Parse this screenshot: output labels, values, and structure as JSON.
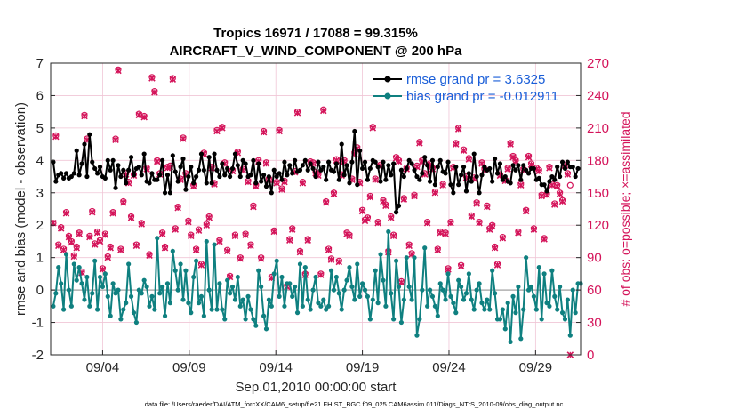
{
  "chart_data": {
    "type": "line",
    "title_line1": "Tropics 16971 / 17088 = 99.315%",
    "title_line2": "AIRCRAFT_V_WIND_COMPONENT @ 200 hPa",
    "xlabel": "Sep.01,2010 00:00:00 start",
    "ylabel_left": "rmse and bias (model - observation)",
    "ylabel_right": "# of obs: o=possible; ×=assimilated",
    "ylim_left": [
      -2,
      7
    ],
    "ylim_right": [
      0,
      270
    ],
    "xlim": [
      0,
      30.6
    ],
    "yticks_left": [
      -2,
      -1,
      0,
      1,
      2,
      3,
      4,
      5,
      6,
      7
    ],
    "yticks_right": [
      0,
      30,
      60,
      90,
      120,
      150,
      180,
      210,
      240,
      270
    ],
    "xticks": [
      {
        "x": 3,
        "label": "09/04"
      },
      {
        "x": 8,
        "label": "09/09"
      },
      {
        "x": 13,
        "label": "09/14"
      },
      {
        "x": 18,
        "label": "09/19"
      },
      {
        "x": 23,
        "label": "09/24"
      },
      {
        "x": 28,
        "label": "09/29"
      }
    ],
    "footnote": "data file: /Users/raeder/DAI/ATM_forcXX/CAM6_setup/f.e21.FHIST_BGC.f09_025.CAM6assim.011/Diags_NTrS_2010-09/obs_diag_output.nc",
    "colors": {
      "rmse": "#000000",
      "bias": "#0f8080",
      "obs": "#d4145a",
      "legend_text": "#1a5ed8",
      "grid": "#f0c6d6",
      "zero_line": "#b0b0b0"
    },
    "series": [
      {
        "name": "rmse grand pr = 3.6325",
        "key": "rmse",
        "values": [
          3.95,
          3.35,
          3.55,
          3.6,
          3.45,
          3.6,
          3.45,
          3.5,
          3.6,
          4.3,
          3.55,
          3.9,
          4.5,
          3.5,
          4.8,
          3.95,
          3.75,
          3.6,
          3.8,
          3.5,
          3.45,
          4.0,
          3.7,
          4.0,
          3.15,
          3.85,
          3.5,
          3.7,
          3.3,
          3.7,
          4.1,
          3.55,
          3.75,
          3.8,
          3.55,
          4.2,
          3.35,
          3.3,
          3.6,
          3.4,
          3.4,
          3.55,
          4.0,
          3.0,
          3.55,
          3.0,
          4.15,
          3.65,
          3.35,
          3.8,
          4.05,
          3.1,
          3.5,
          3.8,
          3.3,
          3.5,
          3.7,
          4.2,
          3.7,
          3.3,
          4.1,
          3.3,
          4.2,
          3.7,
          3.5,
          3.9,
          3.55,
          3.75,
          3.5,
          3.75,
          4.2,
          3.85,
          3.5,
          4.0,
          3.9,
          3.5,
          3.55,
          4.0,
          3.3,
          3.9,
          3.35,
          3.55,
          3.2,
          3.5,
          3.0,
          3.7,
          3.5,
          3.6,
          3.4,
          3.95,
          3.55,
          3.85,
          3.6,
          4.0,
          3.65,
          3.7,
          3.85,
          4.0,
          3.7,
          3.9,
          3.75,
          3.5,
          3.95,
          3.7,
          3.8,
          3.4,
          3.95,
          3.7,
          3.65,
          3.9,
          3.4,
          4.5,
          3.55,
          3.85,
          3.3,
          3.95,
          4.9,
          3.25,
          4.3,
          3.75,
          3.95,
          3.4,
          3.75,
          4.0,
          3.95,
          3.8,
          3.35,
          3.95,
          3.4,
          3.85,
          3.55,
          3.9,
          2.4,
          2.6,
          3.7,
          3.5,
          3.75,
          4.0,
          3.9,
          3.7,
          3.5,
          3.4,
          3.6,
          4.1,
          3.85,
          3.35,
          4.0,
          3.25,
          3.8,
          4.0,
          3.65,
          3.6,
          3.95,
          3.25,
          3.0,
          3.8,
          3.25,
          3.55,
          3.8,
          3.05,
          3.6,
          3.35,
          4.2,
          3.5,
          3.0,
          3.55,
          3.8,
          3.7,
          3.75,
          3.35,
          4.05,
          3.6,
          3.9,
          3.4,
          3.5,
          3.35,
          3.3,
          3.85,
          3.7,
          3.85,
          3.4,
          3.85,
          3.7,
          3.6,
          3.75,
          3.75,
          3.4,
          3.45,
          3.25,
          3.25,
          3.05,
          3.35,
          3.5,
          3.4,
          3.8,
          3.5,
          3.95,
          3.75,
          3.95,
          3.8,
          3.8,
          3.5,
          3.75
        ]
      },
      {
        "name": "bias grand pr = -0.012911",
        "key": "bias",
        "values": [
          -0.5,
          -0.1,
          0.7,
          0.2,
          -0.6,
          1.1,
          0.0,
          -0.5,
          0.8,
          0.3,
          0.7,
          0.2,
          -0.3,
          0.4,
          -0.5,
          -0.1,
          0.9,
          -0.6,
          0.4,
          0.1,
          0.5,
          -0.2,
          -0.8,
          0.2,
          -0.1,
          0.0,
          -0.9,
          -0.6,
          -0.4,
          0.8,
          -0.2,
          -0.7,
          -1.0,
          0.0,
          -0.1,
          0.3,
          0.1,
          -0.5,
          -0.2,
          -0.6,
          1.6,
          -0.1,
          0.1,
          -0.8,
          0.2,
          -0.4,
          1.2,
          0.6,
          0.0,
          0.8,
          -0.3,
          0.6,
          -0.4,
          -0.7,
          0.4,
          0.9,
          -0.4,
          -0.2,
          -0.8,
          1.5,
          0.0,
          -0.6,
          1.4,
          -0.6,
          0.2,
          -0.6,
          -0.9,
          0.3,
          -0.1,
          0.1,
          -0.3,
          0.4,
          -0.5,
          -0.3,
          -0.9,
          -0.2,
          -0.6,
          -0.9,
          -1.1,
          0.6,
          0.1,
          -0.8,
          -1.2,
          -0.3,
          -0.5,
          0.5,
          0.9,
          -0.2,
          0.4,
          -0.5,
          0.2,
          0.2,
          -0.2,
          0.1,
          -0.7,
          0.8,
          -0.5,
          0.7,
          -0.3,
          -0.6,
          0.0,
          0.4,
          -0.4,
          -0.5,
          -0.3,
          -0.6,
          -0.5,
          0.6,
          0.0,
          0.4,
          -0.1,
          -0.6,
          0.0,
          0.3,
          0.7,
          0.1,
          -0.3,
          0.8,
          -0.2,
          0.2,
          0.0,
          -0.2,
          -0.9,
          -0.3,
          0.6,
          -0.4,
          1.1,
          0.3,
          -0.5,
          1.8,
          -0.1,
          -0.9,
          0.9,
          0.1,
          -1.0,
          -0.3,
          1.0,
          0.1,
          -0.3,
          1.0,
          -1.4,
          -0.9,
          0.0,
          1.3,
          -0.5,
          0.0,
          -0.2,
          -0.5,
          -0.8,
          0.2,
          0.0,
          -0.3,
          0.5,
          -0.2,
          -0.4,
          -0.7,
          0.3,
          0.1,
          -0.3,
          -0.1,
          0.5,
          -0.3,
          -0.6,
          0.0,
          0.2,
          -0.4,
          -0.6,
          -0.3,
          -0.6,
          0.6,
          -0.1,
          -0.9,
          -0.9,
          -0.6,
          -1.2,
          -0.4,
          -1.6,
          -0.2,
          -0.7,
          0.1,
          -1.5,
          -0.6,
          1.0,
          0.0,
          0.1,
          -0.2,
          -0.6,
          0.7,
          -0.9,
          0.5,
          -0.4,
          -0.5,
          0.6,
          -0.2,
          -0.6,
          0.1,
          -0.7,
          -0.9,
          -0.3,
          -1.4,
          0.0,
          -0.7,
          0.2,
          0.2
        ]
      },
      {
        "name": "obs possible",
        "key": "obs",
        "values": [
          122,
          203,
          102,
          118,
          98,
          132,
          110,
          105,
          92,
          100,
          113,
          77,
          222,
          200,
          110,
          133,
          103,
          114,
          106,
          80,
          112,
          91,
          100,
          132,
          200,
          264,
          98,
          142,
          168,
          160,
          128,
          167,
          102,
          223,
          122,
          221,
          173,
          93,
          257,
          244,
          180,
          168,
          113,
          100,
          174,
          175,
          256,
          117,
          137,
          163,
          201,
          168,
          124,
          111,
          157,
          98,
          116,
          84,
          187,
          121,
          128,
          174,
          159,
          208,
          106,
          211,
          178,
          97,
          73,
          171,
          111,
          188,
          90,
          172,
          112,
          161,
          102,
          138,
          157,
          180,
          90,
          207,
          178,
          163,
          72,
          115,
          160,
          208,
          154,
          161,
          64,
          107,
          117,
          170,
          225,
          96,
          160,
          75,
          107,
          179,
          178,
          169,
          167,
          75,
          227,
          142,
          98,
          89,
          150,
          181,
          87,
          167,
          180,
          113,
          111,
          163,
          187,
          192,
          160,
          134,
          125,
          127,
          147,
          211,
          163,
          123,
          176,
          143,
          139,
          96,
          128,
          111,
          183,
          180,
          68,
          145,
          173,
          102,
          94,
          148,
          175,
          197,
          180,
          168,
          123,
          177,
          173,
          151,
          98,
          114,
          158,
          113,
          80,
          123,
          174,
          196,
          210,
          83,
          190,
          165,
          182,
          129,
          164,
          141,
          123,
          178,
          172,
          138,
          117,
          120,
          100,
          84,
          167,
          109,
          162,
          173,
          196,
          184,
          180,
          114,
          158,
          172,
          134,
          184,
          177,
          117,
          173,
          171,
          148,
          108,
          149,
          174,
          158,
          140,
          157,
          150,
          143,
          176,
          168,
          157
        ]
      }
    ],
    "assimilated_values": [
      122,
      202,
      101,
      117,
      97,
      131,
      109,
      104,
      91,
      99,
      112,
      76,
      221,
      199,
      109,
      132,
      102,
      113,
      105,
      79,
      111,
      90,
      99,
      131,
      199,
      263,
      97,
      141,
      167,
      159,
      127,
      166,
      101,
      222,
      121,
      220,
      172,
      92,
      256,
      243,
      179,
      167,
      112,
      99,
      173,
      174,
      255,
      116,
      136,
      162,
      200,
      167,
      123,
      110,
      156,
      97,
      115,
      83,
      186,
      120,
      127,
      173,
      158,
      207,
      105,
      210,
      177,
      96,
      72,
      170,
      110,
      187,
      89,
      171,
      111,
      160,
      101,
      137,
      156,
      179,
      89,
      206,
      177,
      162,
      71,
      114,
      159,
      207,
      153,
      160,
      63,
      106,
      116,
      169,
      224,
      95,
      159,
      74,
      106,
      178,
      177,
      168,
      166,
      74,
      226,
      141,
      97,
      88,
      149,
      180,
      86,
      166,
      179,
      112,
      110,
      162,
      186,
      191,
      159,
      133,
      124,
      126,
      146,
      210,
      162,
      122,
      175,
      142,
      138,
      95,
      127,
      110,
      182,
      179,
      67,
      144,
      172,
      101,
      93,
      147,
      174,
      196,
      179,
      167,
      122,
      176,
      172,
      150,
      97,
      113,
      157,
      112,
      79,
      122,
      173,
      195,
      209,
      82,
      189,
      164,
      181,
      128,
      163,
      140,
      122,
      177,
      171,
      137,
      116,
      119,
      99,
      83,
      166,
      108,
      161,
      172,
      195,
      183,
      179,
      113,
      157,
      171,
      133,
      183,
      176,
      116,
      172,
      170,
      147,
      107,
      148,
      173,
      157,
      139,
      156,
      149,
      142,
      175,
      167,
      0
    ]
  }
}
